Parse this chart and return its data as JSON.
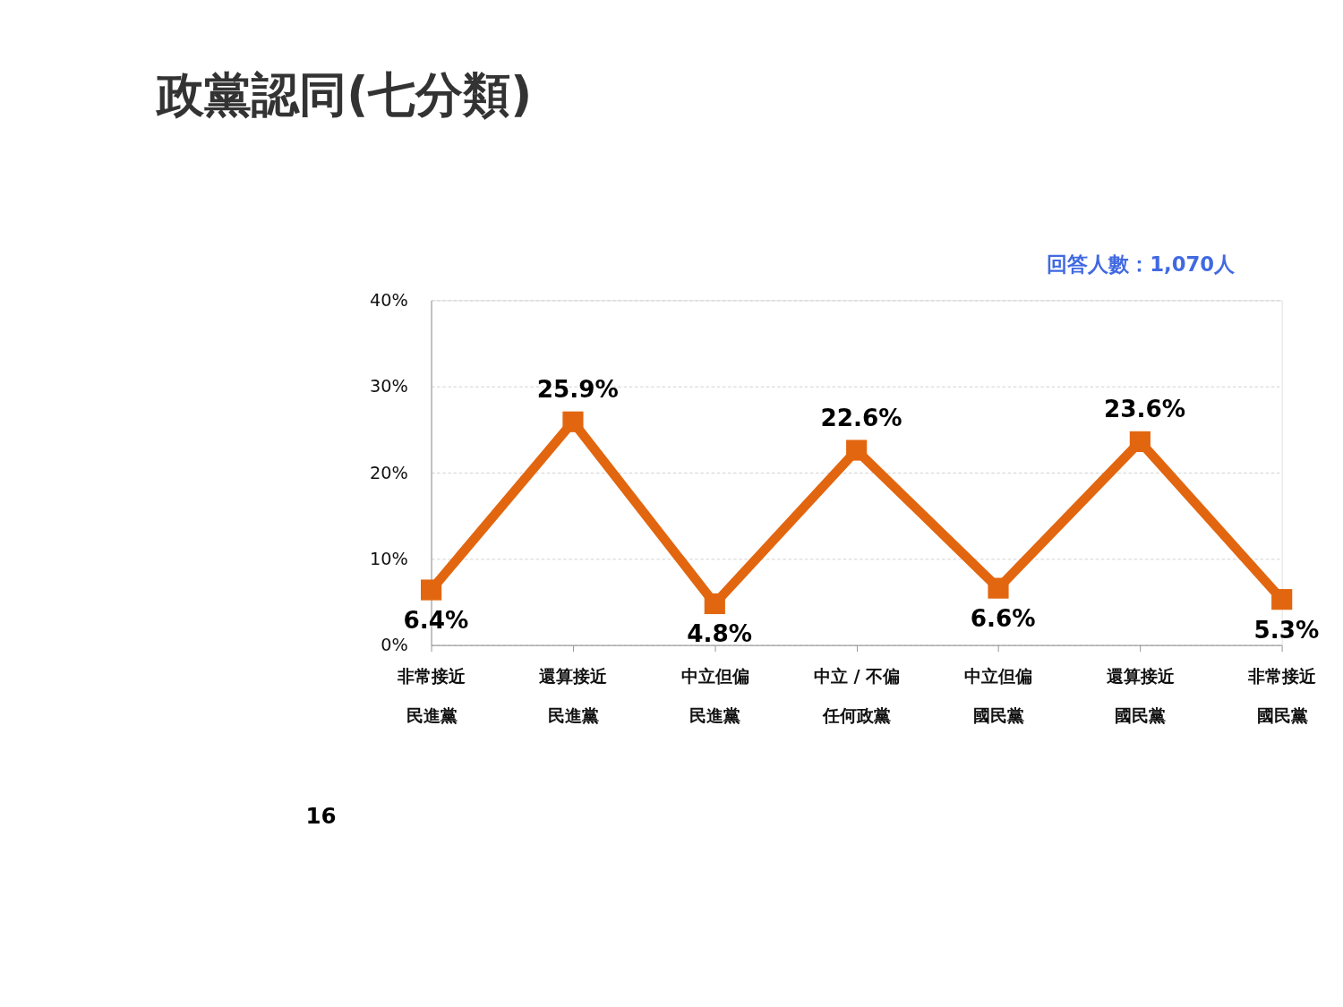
{
  "chart_data": {
    "type": "line",
    "title": "政黨認同(七分類)",
    "annotations": [
      "回答人數：1,070人",
      "16"
    ],
    "categories": [
      "非常接近民進黨",
      "還算接近民進黨",
      "中立但偏民進黨",
      "中立 / 不偏任何政黨",
      "中立但偏國民黨",
      "還算接近國民黨",
      "非常接近國民黨"
    ],
    "series": [
      {
        "color": "#e2660f",
        "values": [
          6.4,
          25.9,
          4.8,
          22.6,
          6.6,
          23.6,
          5.3
        ],
        "value_labels": [
          "6.4%",
          "25.9%",
          "4.8%",
          "22.6%",
          "6.6%",
          "23.6%",
          "5.3%"
        ]
      }
    ],
    "ylim": [
      0,
      40
    ],
    "yticks": [
      {
        "value": 0,
        "label": "0%"
      },
      {
        "value": 10,
        "label": "10%"
      },
      {
        "value": 20,
        "label": "20%"
      },
      {
        "value": 30,
        "label": "30%"
      },
      {
        "value": 40,
        "label": "40%"
      }
    ],
    "grid": "y",
    "marker": "square",
    "line_style": "solid"
  }
}
